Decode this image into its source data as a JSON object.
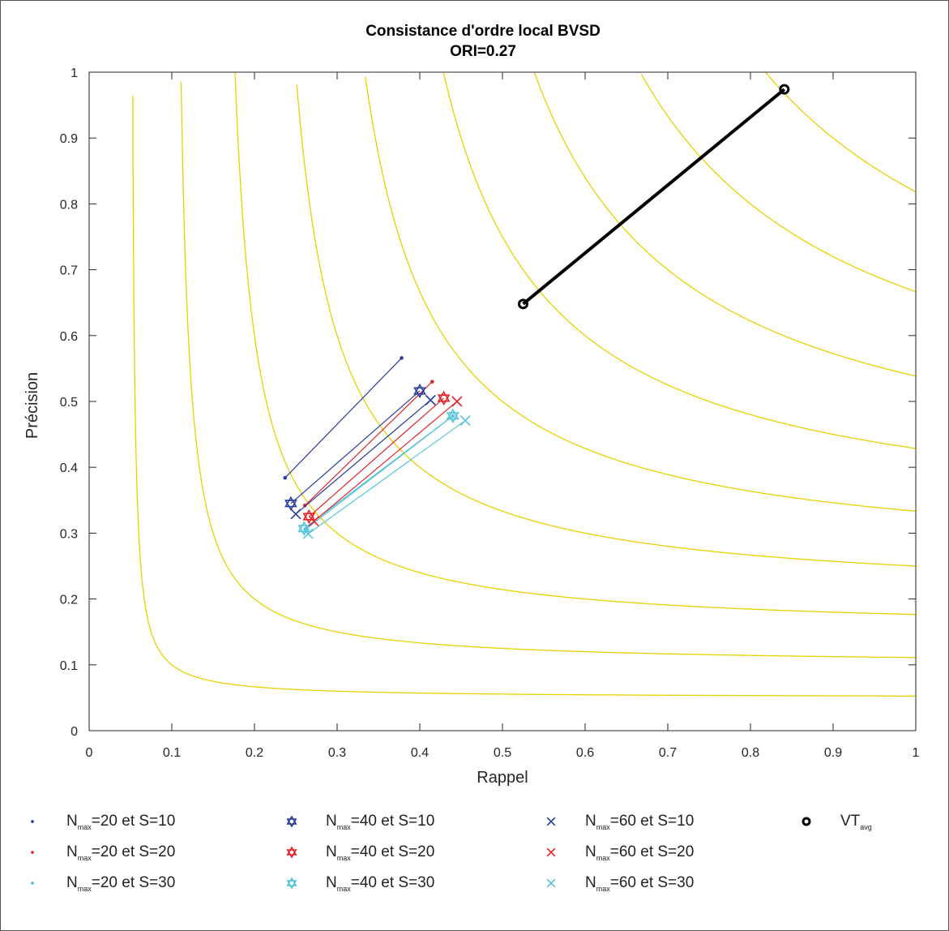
{
  "chart_data": {
    "type": "line",
    "title": "Consistance d'ordre local BVSD",
    "subtitle": "ORI=0.27",
    "xlabel": "Rappel",
    "ylabel": "Précision",
    "xlim": [
      0,
      1
    ],
    "ylim": [
      0,
      1
    ],
    "xticks": [
      "0",
      "0.1",
      "0.2",
      "0.3",
      "0.4",
      "0.5",
      "0.6",
      "0.7",
      "0.8",
      "0.9",
      "1"
    ],
    "yticks": [
      "0",
      "0.1",
      "0.2",
      "0.3",
      "0.4",
      "0.5",
      "0.6",
      "0.7",
      "0.8",
      "0.9",
      "1"
    ],
    "grid": false,
    "f_contours": [
      0.1,
      0.2,
      0.3,
      0.4,
      0.5,
      0.6,
      0.7,
      0.8,
      0.9
    ],
    "contour_color": "#e6d200",
    "series": [
      {
        "name": "N_max=20 et S=10",
        "marker": "dot",
        "color": "#2a3f9c",
        "x": [
          0.237,
          0.378
        ],
        "y": [
          0.384,
          0.566
        ]
      },
      {
        "name": "N_max=20 et S=20",
        "marker": "dot",
        "color": "#e0242a",
        "x": [
          0.261,
          0.415
        ],
        "y": [
          0.342,
          0.53
        ]
      },
      {
        "name": "N_max=20 et S=30",
        "marker": "dot",
        "color": "#55c4d8",
        "x": [
          0.262,
          0.44
        ],
        "y": [
          0.306,
          0.478
        ]
      },
      {
        "name": "N_max=40 et S=10",
        "marker": "star",
        "color": "#2a3f9c",
        "x": [
          0.244,
          0.4
        ],
        "y": [
          0.345,
          0.516
        ]
      },
      {
        "name": "N_max=40 et S=20",
        "marker": "star",
        "color": "#e0242a",
        "x": [
          0.266,
          0.429
        ],
        "y": [
          0.325,
          0.505
        ]
      },
      {
        "name": "N_max=40 et S=30",
        "marker": "star",
        "color": "#55c4d8",
        "x": [
          0.26,
          0.44
        ],
        "y": [
          0.307,
          0.478
        ]
      },
      {
        "name": "N_max=60 et S=10",
        "marker": "x",
        "color": "#2a3f9c",
        "x": [
          0.25,
          0.413
        ],
        "y": [
          0.329,
          0.502
        ]
      },
      {
        "name": "N_max=60 et S=20",
        "marker": "x",
        "color": "#e0242a",
        "x": [
          0.272,
          0.445
        ],
        "y": [
          0.318,
          0.5
        ]
      },
      {
        "name": "N_max=60 et S=30",
        "marker": "x",
        "color": "#55c4d8",
        "x": [
          0.265,
          0.455
        ],
        "y": [
          0.299,
          0.471
        ]
      },
      {
        "name": "VT_avg",
        "marker": "circle",
        "color": "#000000",
        "x": [
          0.525,
          0.841
        ],
        "y": [
          0.648,
          0.974
        ]
      }
    ]
  },
  "legend": [
    {
      "sym": "dot",
      "color": "#2a3f9c",
      "n": "N",
      "sub": "max",
      "rest": "=20 et S=10"
    },
    {
      "sym": "star",
      "color": "#2a3f9c",
      "n": "N",
      "sub": "max",
      "rest": "=40 et S=10"
    },
    {
      "sym": "x",
      "color": "#2a3f9c",
      "n": "N",
      "sub": "max",
      "rest": "=60 et S=10"
    },
    {
      "sym": "circle",
      "color": "#000000",
      "n": "VT",
      "sub": "avg",
      "rest": ""
    },
    {
      "sym": "dot",
      "color": "#e0242a",
      "n": "N",
      "sub": "max",
      "rest": "=20 et S=20"
    },
    {
      "sym": "star",
      "color": "#e0242a",
      "n": "N",
      "sub": "max",
      "rest": "=40 et S=20"
    },
    {
      "sym": "x",
      "color": "#e0242a",
      "n": "N",
      "sub": "max",
      "rest": "=60 et S=20"
    },
    {
      "sym": "dot",
      "color": "#55c4d8",
      "n": "N",
      "sub": "max",
      "rest": "=20 et S=30"
    },
    {
      "sym": "star",
      "color": "#55c4d8",
      "n": "N",
      "sub": "max",
      "rest": "=40 et S=30"
    },
    {
      "sym": "x",
      "color": "#55c4d8",
      "n": "N",
      "sub": "max",
      "rest": "=60 et S=30"
    }
  ]
}
